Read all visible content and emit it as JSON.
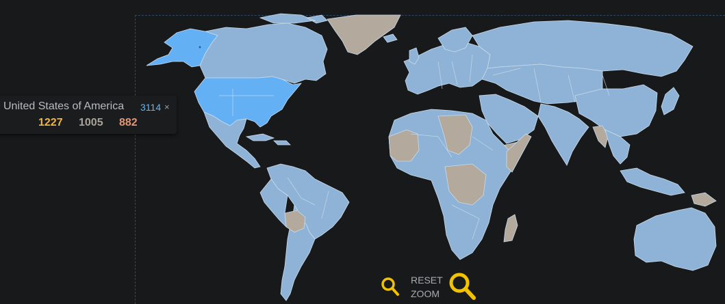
{
  "map": {
    "highlight_color": "#64b0f5",
    "data_color": "#8fb3d6",
    "nodata_color": "#b3aa9d",
    "background_color": "#18191b"
  },
  "tooltip": {
    "country": "United States of America",
    "total": "3114",
    "close_symbol": "×",
    "values": [
      "1227",
      "1005",
      "882"
    ],
    "value_colors": [
      "#f0b640",
      "#a9a49b",
      "#e39676"
    ]
  },
  "controls": {
    "reset_line1": "RESET",
    "reset_line2": "ZOOM",
    "zoom_in_icon": "magnifier-icon",
    "zoom_out_icon": "magnifier-icon",
    "icon_color": "#f2c200"
  }
}
